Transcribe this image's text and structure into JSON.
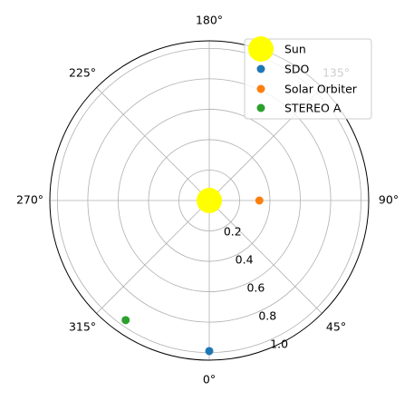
{
  "chart_data": {
    "type": "scatter",
    "projection": "polar",
    "theta_zero_location": "S",
    "theta_direction": "counterclockwise",
    "theta_unit": "degrees",
    "theta_ticks": [
      {
        "value": 0,
        "label": "0°"
      },
      {
        "value": 45,
        "label": "45°"
      },
      {
        "value": 90,
        "label": "90°"
      },
      {
        "value": 135,
        "label": "135°"
      },
      {
        "value": 180,
        "label": "180°"
      },
      {
        "value": 225,
        "label": "225°"
      },
      {
        "value": 270,
        "label": "270°"
      },
      {
        "value": 315,
        "label": "315°"
      }
    ],
    "r_ticks": [
      {
        "value": 0.2,
        "label": "0.2"
      },
      {
        "value": 0.4,
        "label": "0.4"
      },
      {
        "value": 0.6,
        "label": "0.6"
      },
      {
        "value": 0.8,
        "label": "0.8"
      },
      {
        "value": 1.0,
        "label": "1.0"
      }
    ],
    "rlim": [
      0,
      1.05
    ],
    "grid": true,
    "legend": "top-right",
    "series": [
      {
        "name": "Sun",
        "color": "#ffff00",
        "marker": "large-circle",
        "points": [
          {
            "theta": 0,
            "r": 0
          }
        ]
      },
      {
        "name": "SDO",
        "color": "#1f77b4",
        "marker": "circle",
        "points": [
          {
            "theta": 0,
            "r": 0.99
          }
        ]
      },
      {
        "name": "Solar Orbiter",
        "color": "#ff7f0e",
        "marker": "circle",
        "points": [
          {
            "theta": 90,
            "r": 0.33
          }
        ]
      },
      {
        "name": "STEREO A",
        "color": "#2ca02c",
        "marker": "circle",
        "points": [
          {
            "theta": 325,
            "r": 0.96
          }
        ]
      }
    ]
  }
}
